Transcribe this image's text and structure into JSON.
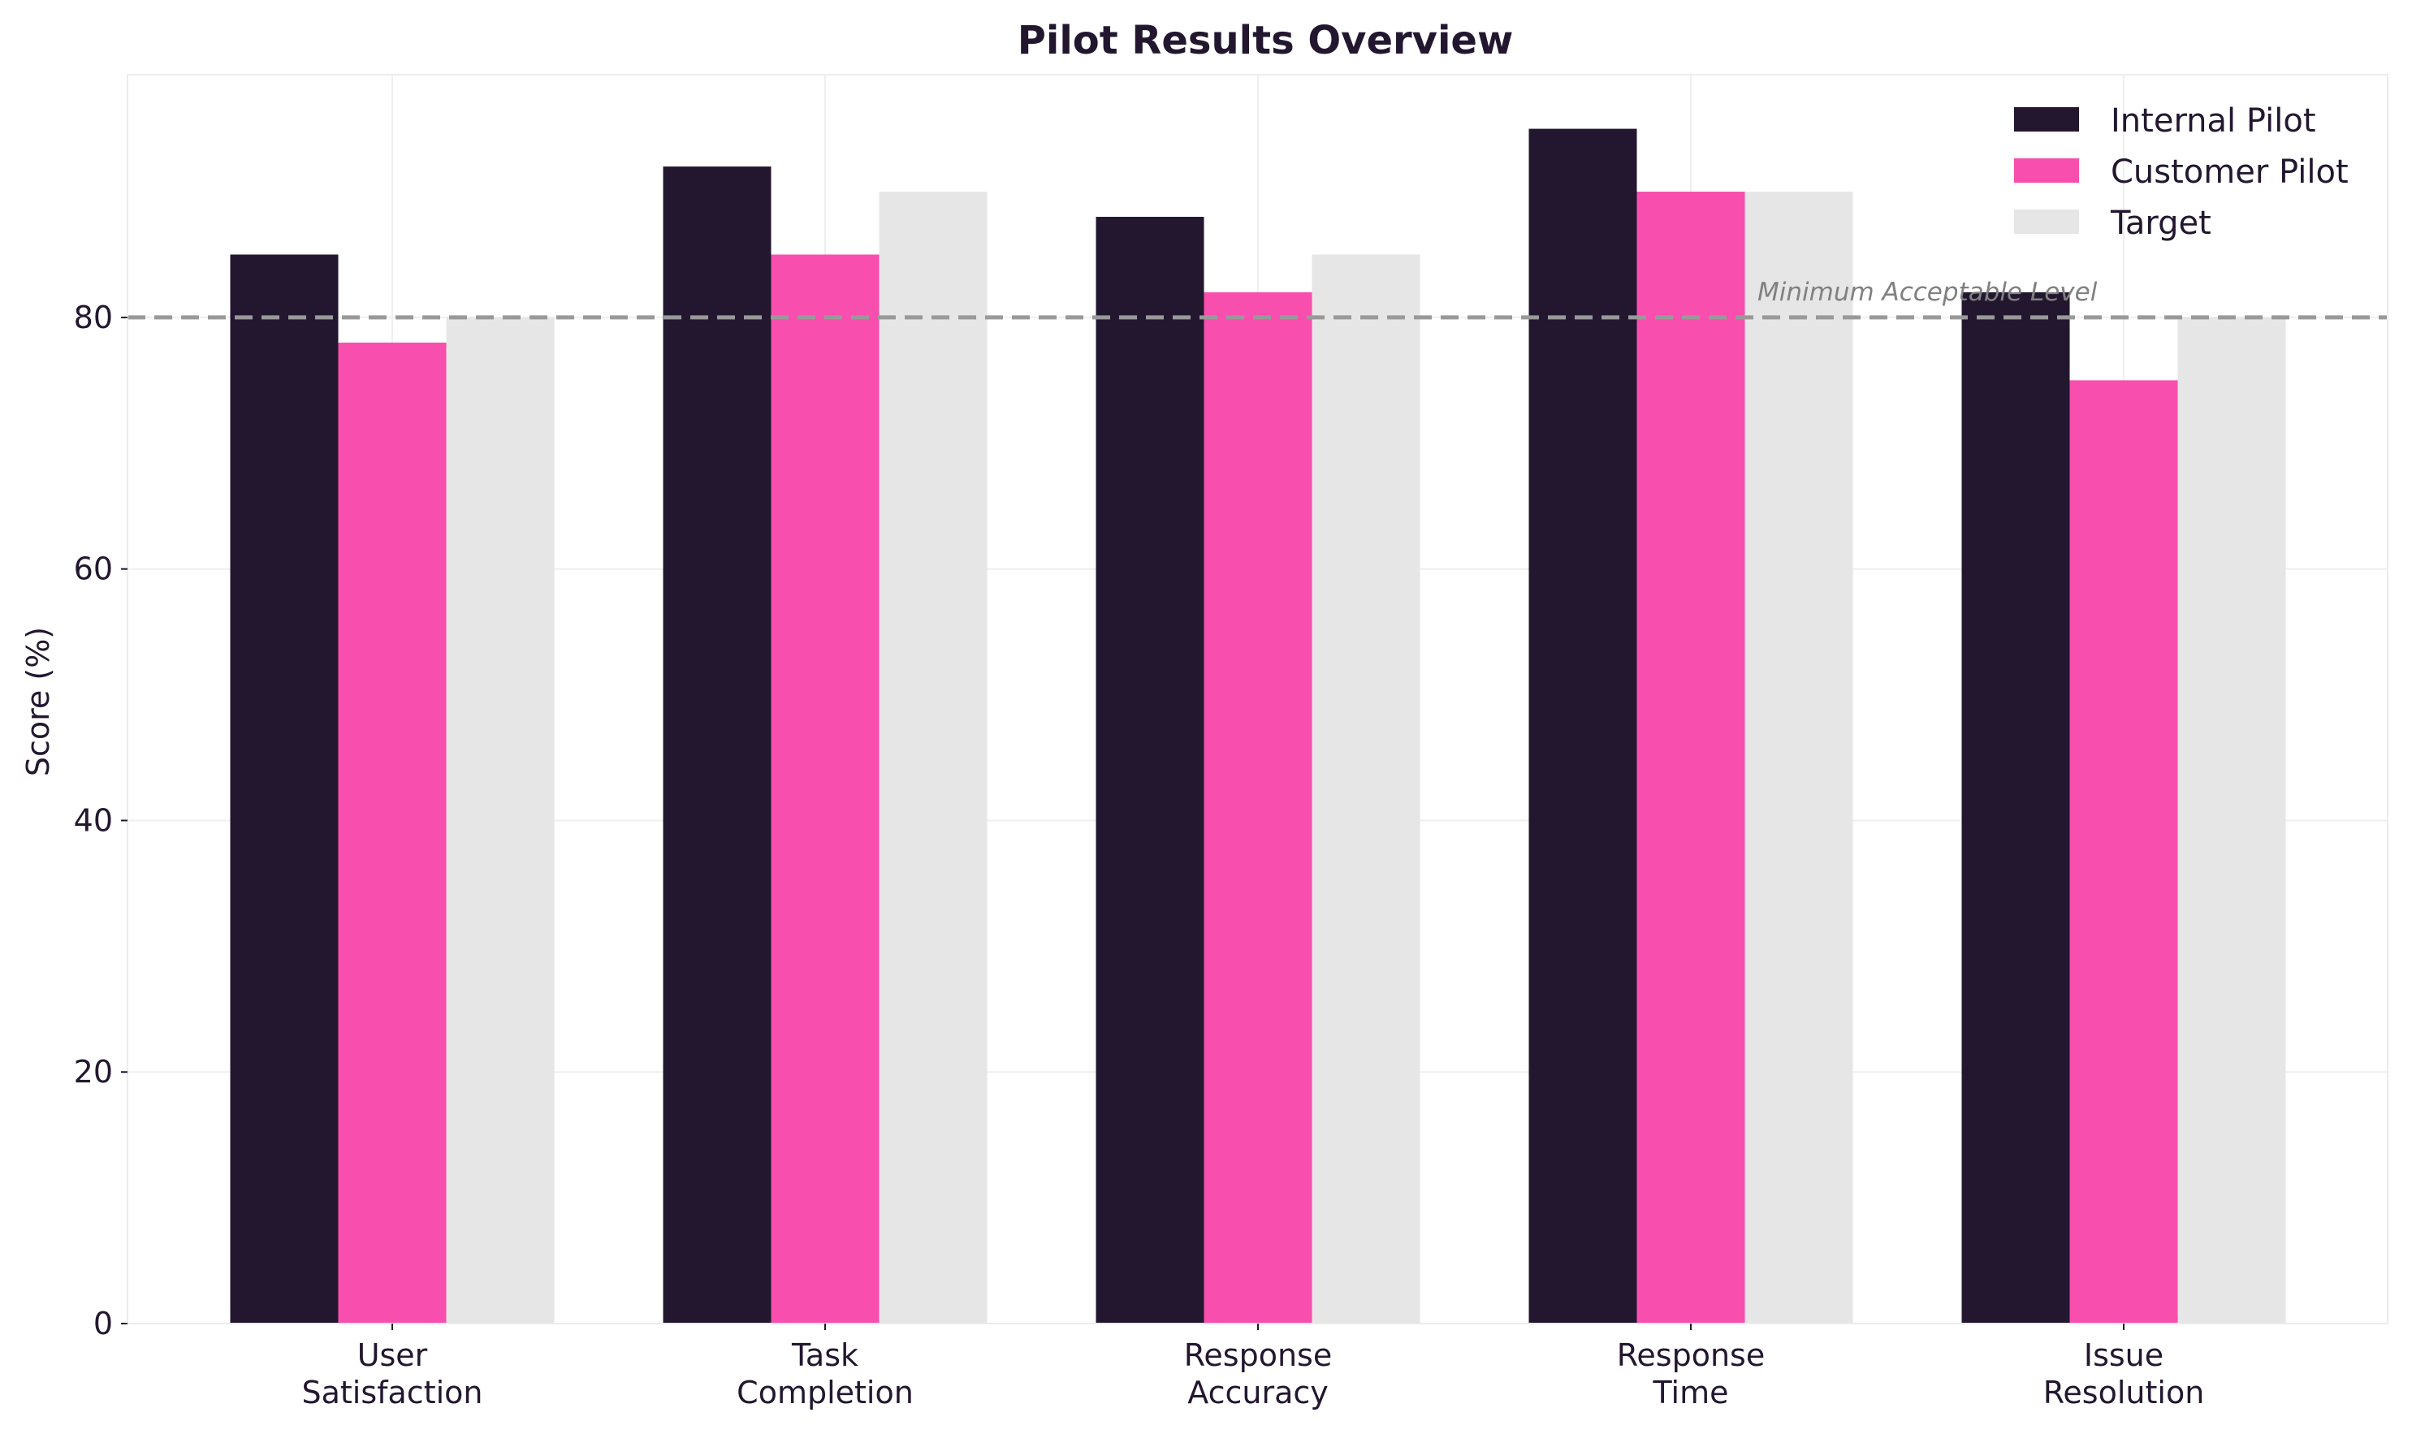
{
  "chart_data": {
    "type": "bar",
    "title": "Pilot Results Overview",
    "xlabel": "",
    "ylabel": "Score (%)",
    "categories": [
      "User\nSatisfaction",
      "Task\nCompletion",
      "Response\nAccuracy",
      "Response\nTime",
      "Issue\nResolution"
    ],
    "series": [
      {
        "name": "Internal Pilot",
        "color": "#231730",
        "values": [
          85,
          92,
          88,
          95,
          82
        ]
      },
      {
        "name": "Customer Pilot",
        "color": "#f84fae",
        "values": [
          78,
          85,
          82,
          90,
          75
        ]
      },
      {
        "name": "Target",
        "color": "#e6e6e6",
        "values": [
          80,
          90,
          85,
          90,
          80
        ]
      }
    ],
    "ylim": [
      0,
      100
    ],
    "yticks": [
      0,
      20,
      40,
      60,
      80
    ],
    "reference_line": {
      "value": 80,
      "label": "Minimum Acceptable Level",
      "color": "#999999",
      "style": "dashed"
    },
    "grid": true,
    "legend_position": "top-right"
  }
}
